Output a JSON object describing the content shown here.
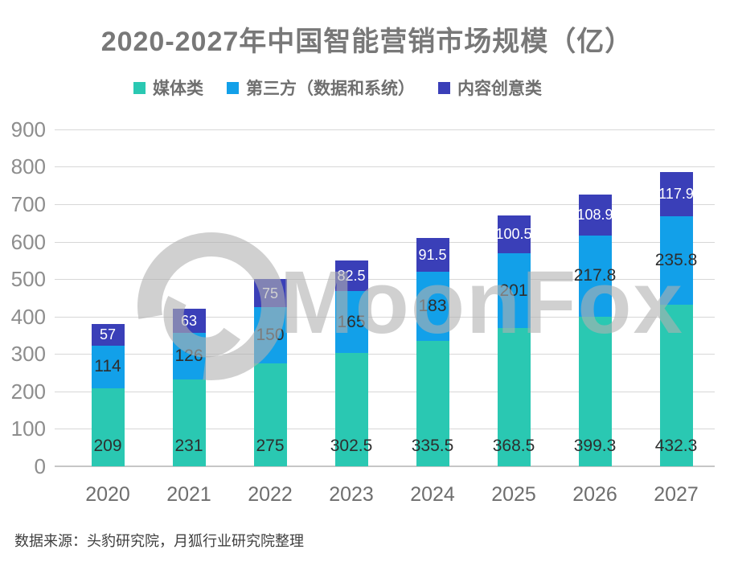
{
  "title": "2020-2027年中国智能营销市场规模（亿）",
  "legend": [
    {
      "label": "媒体类",
      "color": "#2AC8B2"
    },
    {
      "label": "第三方（数据和系统）",
      "color": "#12A0E9"
    },
    {
      "label": "内容创意类",
      "color": "#3A3FB8"
    }
  ],
  "watermark_text": "MoonFox",
  "source_note": "数据来源：头豹研究院，月狐行业研究院整理",
  "chart_data": {
    "type": "bar",
    "stacked": true,
    "title": "2020-2027年中国智能营销市场规模（亿）",
    "categories": [
      "2020",
      "2021",
      "2022",
      "2023",
      "2024",
      "2025",
      "2026",
      "2027"
    ],
    "series": [
      {
        "name": "媒体类",
        "color": "#2AC8B2",
        "label_style": "dark",
        "values": [
          209,
          231,
          275,
          302.5,
          335.5,
          368.5,
          399.3,
          432.3
        ]
      },
      {
        "name": "第三方（数据和系统）",
        "color": "#12A0E9",
        "label_style": "dark",
        "values": [
          114,
          126,
          150,
          165,
          183,
          201,
          217.8,
          235.8
        ]
      },
      {
        "name": "内容创意类",
        "color": "#3A3FB8",
        "label_style": "light",
        "values": [
          57,
          63,
          75,
          82.5,
          91.5,
          100.5,
          108.9,
          117.9
        ]
      }
    ],
    "xlabel": "",
    "ylabel": "",
    "ylim": [
      0,
      900
    ],
    "ytick_step": 100,
    "grid": true,
    "legend_position": "top",
    "gridline_color": "#d7d7d7"
  }
}
